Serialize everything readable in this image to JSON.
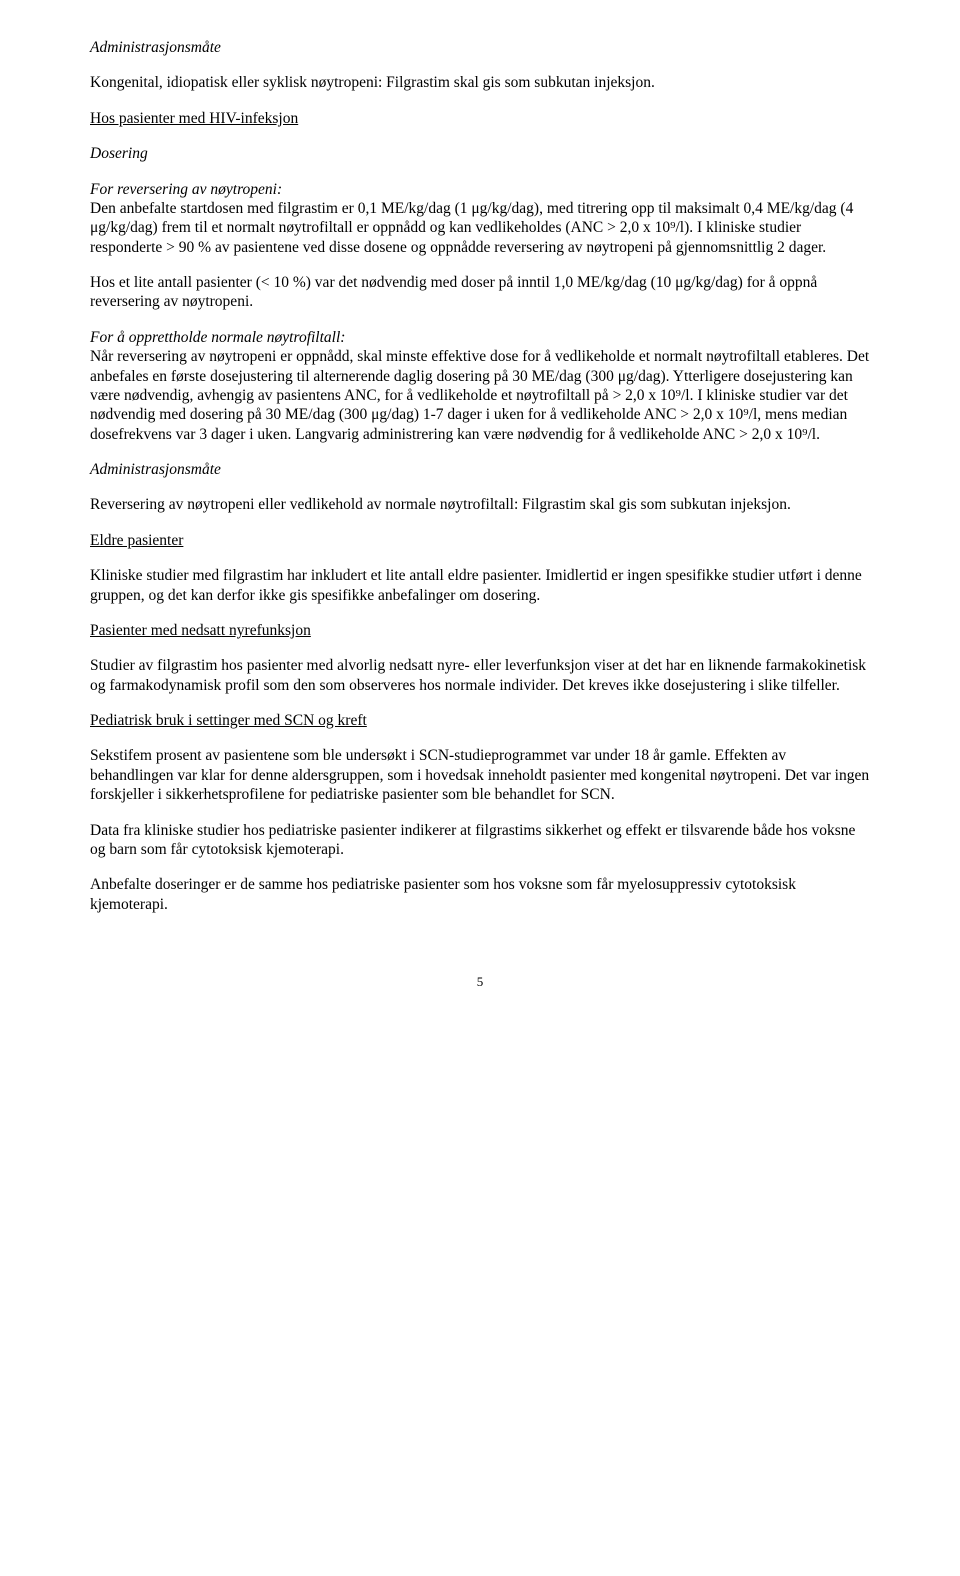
{
  "page": {
    "p1": "Administrasjonsmåte",
    "p2": "Kongenital, idiopatisk eller syklisk nøytropeni: Filgrastim skal gis som subkutan injeksjon.",
    "p3": "Hos pasienter med HIV-infeksjon",
    "p4": "Dosering",
    "p5_label": "For reversering av nøytropeni:",
    "p5_body": "Den anbefalte startdosen med filgrastim er 0,1 ME/kg/dag (1 μg/kg/dag), med titrering opp til maksimalt 0,4 ME/kg/dag (4 μg/kg/dag) frem til et normalt nøytrofiltall er oppnådd og kan vedlikeholdes (ANC > 2,0 x 10⁹/l). I kliniske studier responderte > 90 % av pasientene ved disse dosene og oppnådde reversering av nøytropeni på gjennomsnittlig 2 dager.",
    "p6": "Hos et lite antall pasienter (< 10 %) var det nødvendig med doser på inntil 1,0 ME/kg/dag (10 μg/kg/dag) for å oppnå reversering av nøytropeni.",
    "p7_label": "For å opprettholde normale nøytrofiltall:",
    "p7_body": "Når reversering av nøytropeni er oppnådd, skal minste effektive dose for å vedlikeholde et normalt nøytrofiltall etableres. Det anbefales en første dosejustering til alternerende daglig dosering på 30 ME/dag (300 μg/dag). Ytterligere dosejustering kan være nødvendig, avhengig av pasientens ANC, for å vedlikeholde et nøytrofiltall på > 2,0 x 10⁹/l. I kliniske studier var det nødvendig med dosering på 30 ME/dag (300 μg/dag) 1-7 dager i uken for å vedlikeholde ANC > 2,0 x 10⁹/l, mens median dosefrekvens var 3 dager i uken. Langvarig administrering kan være nødvendig for å vedlikeholde ANC > 2,0 x 10⁹/l.",
    "p8": "Administrasjonsmåte",
    "p9": "Reversering av nøytropeni eller vedlikehold av normale nøytrofiltall: Filgrastim skal gis som subkutan injeksjon.",
    "p10": "Eldre pasienter",
    "p11": "Kliniske studier med filgrastim har inkludert et lite antall eldre pasienter. Imidlertid er ingen spesifikke studier utført i denne gruppen, og det kan derfor ikke gis spesifikke anbefalinger om dosering.",
    "p12": "Pasienter med nedsatt nyrefunksjon",
    "p13": "Studier av filgrastim hos pasienter med alvorlig nedsatt nyre- eller leverfunksjon viser at det har en liknende farmakokinetisk og farmakodynamisk profil som den som observeres hos normale individer. Det kreves ikke dosejustering i slike tilfeller.",
    "p14": "Pediatrisk bruk i settinger med SCN og kreft",
    "p15": "Sekstifem prosent av pasientene som ble undersøkt i SCN-studieprogrammet var under 18 år gamle. Effekten av behandlingen var klar for denne aldersgruppen, som i hovedsak inneholdt pasienter med kongenital nøytropeni. Det var ingen forskjeller i sikkerhetsprofilene for pediatriske pasienter som ble behandlet for SCN.",
    "p16": "Data fra kliniske studier hos pediatriske pasienter indikerer at filgrastims sikkerhet og effekt er tilsvarende både hos voksne og barn som får cytotoksisk kjemoterapi.",
    "p17": "Anbefalte doseringer er de samme hos pediatriske pasienter som hos voksne som får myelosuppressiv cytotoksisk kjemoterapi.",
    "page_number": "5"
  }
}
